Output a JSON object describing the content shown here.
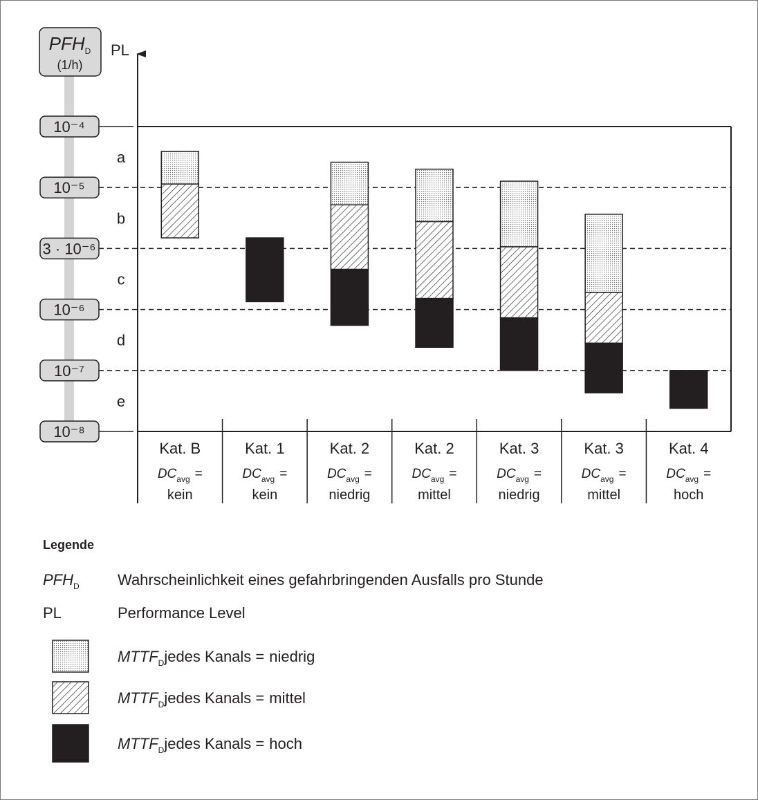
{
  "chart_data": {
    "type": "floating-stacked-bar",
    "y_title": {
      "symbol": "PFH",
      "subscript": "D",
      "unit": "(1/h)"
    },
    "pl_title": "PL",
    "pl_levels": [
      "a",
      "b",
      "c",
      "d",
      "e"
    ],
    "categories": [
      "Kat. B",
      "Kat. 1",
      "Kat. 2",
      "Kat. 2",
      "Kat. 3",
      "Kat. 3",
      "Kat. 4"
    ],
    "dc_label": {
      "symbol": "DC",
      "subscript": "avg",
      "sign": "="
    },
    "dc_values": [
      "kein",
      "kein",
      "niedrig",
      "mittel",
      "niedrig",
      "mittel",
      "hoch"
    ],
    "ylim": [
      0.0001,
      1e-08
    ],
    "yticks": [
      {
        "value": 0.0001,
        "label": "10⁻⁴"
      },
      {
        "value": 1e-05,
        "label": "10⁻⁵"
      },
      {
        "value": 3e-06,
        "label": "3 · 10⁻⁶"
      },
      {
        "value": 1e-06,
        "label": "10⁻⁶"
      },
      {
        "value": 1e-07,
        "label": "10⁻⁷"
      },
      {
        "value": 1e-08,
        "label": "10⁻⁸"
      }
    ],
    "series": [
      {
        "name": "niedrig",
        "fill": "dots",
        "high": [
          3.9e-05,
          null,
          2.6e-05,
          2e-05,
          1.27e-05,
          5.9e-06,
          null
        ],
        "low": [
          1.14e-05,
          null,
          7.1e-06,
          5.1e-06,
          3.1e-06,
          1.36e-06,
          null
        ]
      },
      {
        "name": "mittel",
        "fill": "hatch",
        "high": [
          1.14e-05,
          null,
          7.1e-06,
          5.1e-06,
          3.1e-06,
          1.36e-06,
          null
        ],
        "low": [
          3.7e-06,
          null,
          2.06e-06,
          1.22e-06,
          7.3e-07,
          2.8e-07,
          null
        ]
      },
      {
        "name": "hoch",
        "fill": "#231f20",
        "high": [
          null,
          3.7e-06,
          2.06e-06,
          1.22e-06,
          7.3e-07,
          2.8e-07,
          1e-07
        ],
        "low": [
          null,
          1.15e-06,
          5.5e-07,
          2.4e-07,
          1e-07,
          4.3e-08,
          2.4e-08
        ]
      }
    ],
    "legend": {
      "title": "Legende",
      "entries": [
        {
          "symbol": "PFH",
          "subscript": "D",
          "text": "Wahrscheinlichkeit eines gefahrbringenden Ausfalls pro Stunde"
        },
        {
          "symbol": "PL",
          "text": "Performance Level"
        }
      ],
      "series_prefix": {
        "symbol": "MTTF",
        "subscript": "D",
        "text": "jedes Kanals ="
      }
    }
  }
}
